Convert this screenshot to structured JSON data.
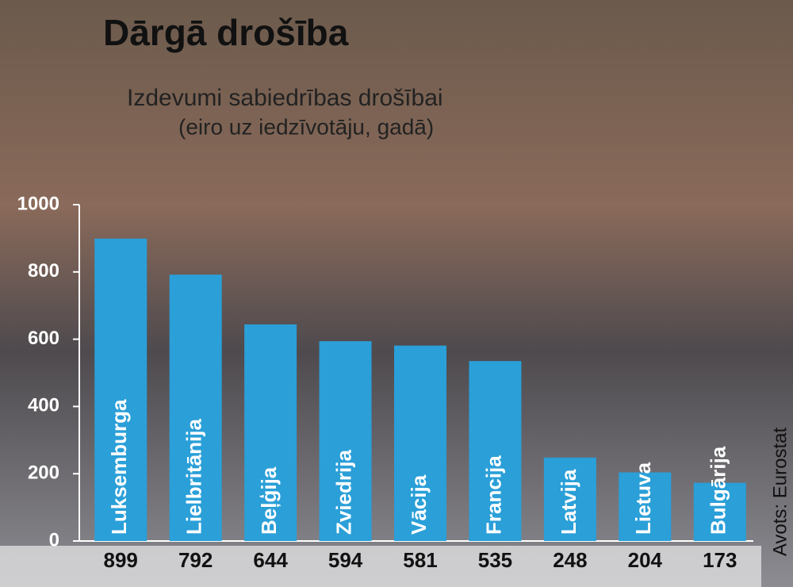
{
  "chart_data": {
    "type": "bar",
    "title": "Dārgā drošība",
    "subtitle": [
      "Izdevumi sabiedrības drošībai",
      "(eiro uz iedzīvotāju, gadā)"
    ],
    "source": "Avots: Eurostat",
    "categories": [
      "Luksemburga",
      "Lielbritānija",
      "Beļģija",
      "Zviedrija",
      "Vācija",
      "Francija",
      "Latvija",
      "Lietuva",
      "Bulgārija"
    ],
    "values": [
      899,
      792,
      644,
      594,
      581,
      535,
      248,
      204,
      173
    ],
    "color": "#2a9fd8",
    "ylim": [
      0,
      1000
    ],
    "yticks": [
      0,
      200,
      400,
      600,
      800,
      1000
    ]
  }
}
